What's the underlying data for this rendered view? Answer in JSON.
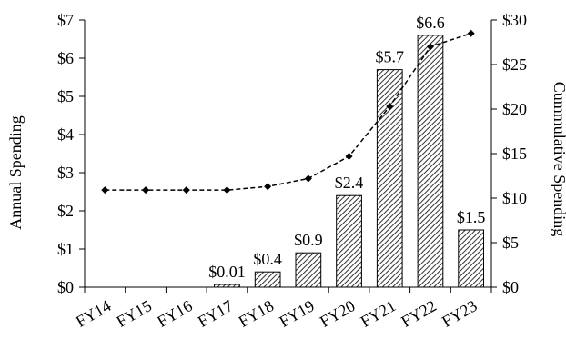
{
  "chart_data": {
    "type": "bar",
    "categories": [
      "FY14",
      "FY15",
      "FY16",
      "FY17",
      "FY18",
      "FY19",
      "FY20",
      "FY21",
      "FY22",
      "FY23"
    ],
    "series": [
      {
        "type": "bar",
        "axis": "left",
        "values": [
          0,
          0,
          0,
          0.01,
          0.4,
          0.9,
          2.4,
          5.7,
          6.6,
          1.5
        ],
        "labels": [
          "",
          "",
          "",
          "$0.01",
          "$0.4",
          "$0.9",
          "$2.4",
          "$5.7",
          "$6.6",
          "$1.5"
        ]
      },
      {
        "type": "line",
        "axis": "right",
        "values": [
          10.9,
          10.9,
          10.9,
          10.9,
          11.3,
          12.2,
          14.7,
          20.3,
          27.0,
          28.5
        ]
      }
    ],
    "ylabel": "Annual Spending",
    "ylim": [
      0,
      7
    ],
    "yticks": [
      "$0",
      "$1",
      "$2",
      "$3",
      "$4",
      "$5",
      "$6",
      "$7"
    ],
    "y2label": "Cummulative Spending",
    "y2lim": [
      0,
      30
    ],
    "y2ticks": [
      "$0",
      "$5",
      "$10",
      "$15",
      "$20",
      "$25",
      "$30"
    ],
    "grid": false,
    "legend": "none",
    "colors": {
      "bar_fill": "#ffffff",
      "bar_hatch": "#333333",
      "line": "#000000"
    }
  }
}
